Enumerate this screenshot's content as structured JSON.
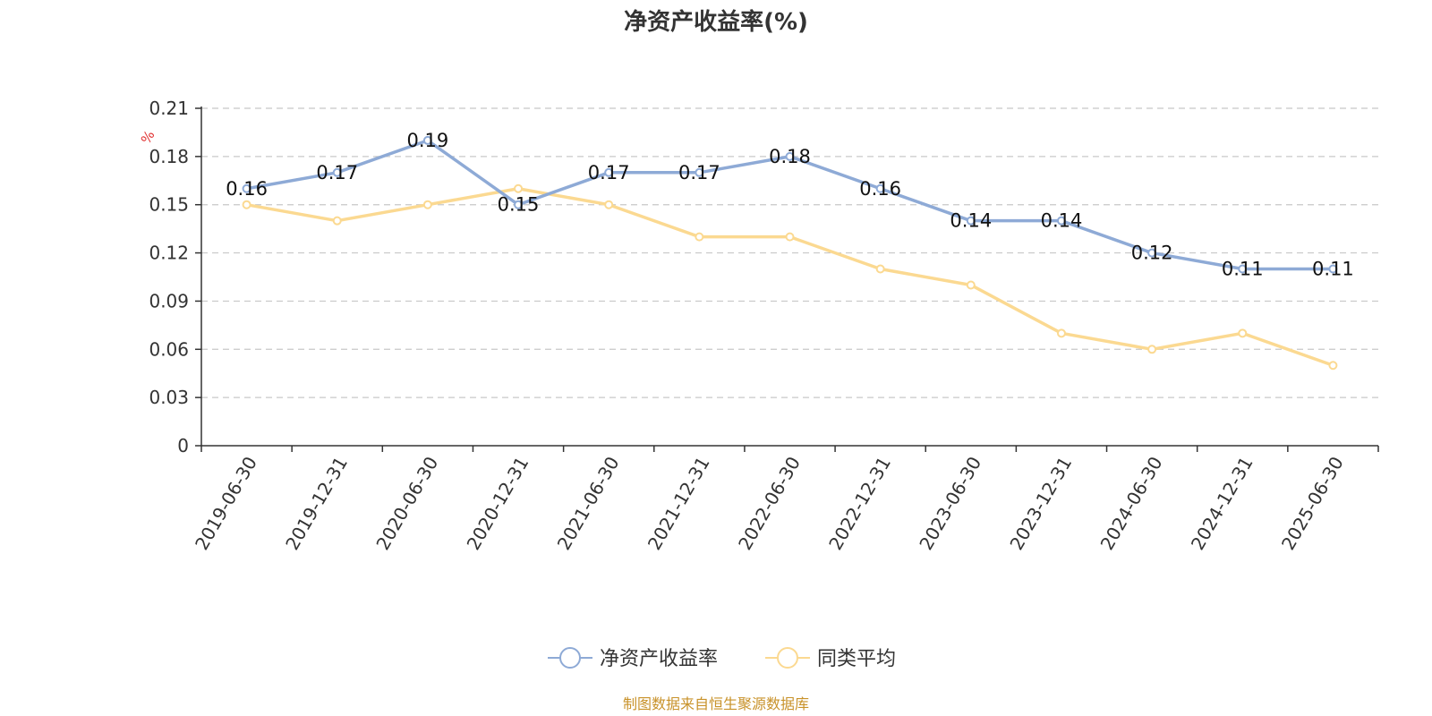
{
  "chart_data": {
    "type": "line",
    "title": "净资产收益率(%)",
    "ylabel": "%",
    "xlabel": "",
    "categories": [
      "2019-06-30",
      "2019-12-31",
      "2020-06-30",
      "2020-12-31",
      "2021-06-30",
      "2021-12-31",
      "2022-06-30",
      "2022-12-31",
      "2023-06-30",
      "2023-12-31",
      "2024-06-30",
      "2024-12-31",
      "2025-06-30"
    ],
    "series": [
      {
        "name": "净资产收益率",
        "values": [
          0.16,
          0.17,
          0.19,
          0.15,
          0.17,
          0.17,
          0.18,
          0.16,
          0.14,
          0.14,
          0.12,
          0.11,
          0.11
        ],
        "color": "#8eaad6",
        "show_labels": true
      },
      {
        "name": "同类平均",
        "values": [
          0.15,
          0.14,
          0.15,
          0.16,
          0.15,
          0.13,
          0.13,
          0.11,
          0.1,
          0.07,
          0.06,
          0.07,
          0.05
        ],
        "color": "#fbd991",
        "show_labels": false
      }
    ],
    "ylim": [
      0,
      0.21
    ],
    "yticks": [
      "0",
      "0.03",
      "0.06",
      "0.09",
      "0.12",
      "0.15",
      "0.18",
      "0.21"
    ],
    "grid": true,
    "legend_position": "bottom-center",
    "source": "制图数据来自恒生聚源数据库"
  }
}
